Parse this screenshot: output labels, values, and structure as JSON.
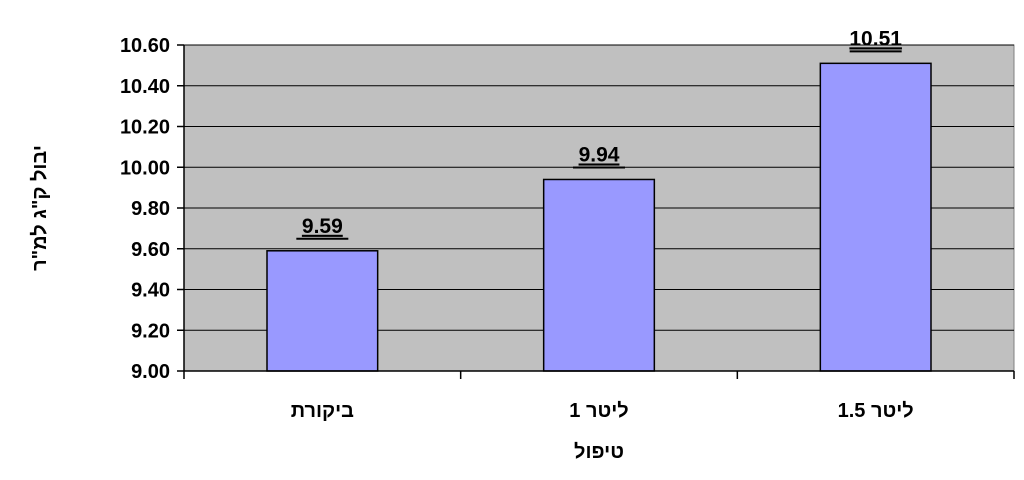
{
  "chart_data": {
    "type": "bar",
    "categories": [
      "ביקורת",
      "ליטר 1",
      "ליטר 1.5"
    ],
    "values": [
      9.59,
      9.94,
      10.51
    ],
    "data_labels": [
      "9.59",
      "9.94",
      "10.51"
    ],
    "xlabel": "טיפול",
    "ylabel": "יבול ק\"ג למ\"ר",
    "ylim": [
      9.0,
      10.6
    ],
    "yticks": [
      9.0,
      9.2,
      9.4,
      9.6,
      9.8,
      10.0,
      10.2,
      10.4,
      10.6
    ],
    "ytick_labels": [
      "9.00",
      "9.20",
      "9.40",
      "9.60",
      "9.80",
      "10.00",
      "10.20",
      "10.40",
      "10.60"
    ],
    "grid": true,
    "legend": "none",
    "colors": {
      "bar": "#9999FF",
      "bar_border": "#000000",
      "plot_background": "#C0C0C0",
      "gridline": "#000000"
    }
  }
}
